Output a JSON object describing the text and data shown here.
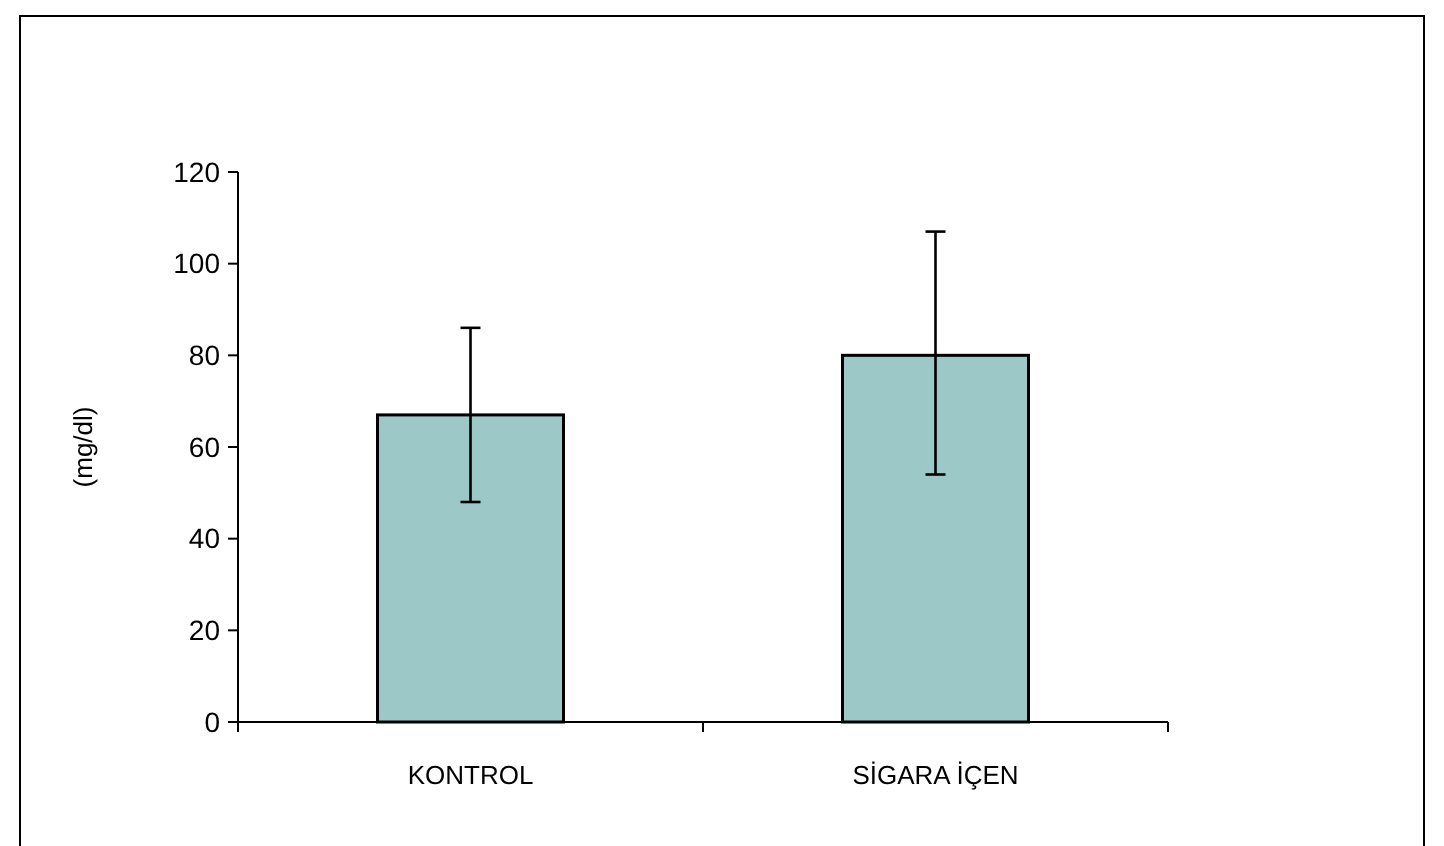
{
  "chart_data": {
    "type": "bar",
    "ylabel": "(mg/dl)",
    "categories": [
      "KONTROL",
      "SİGARA İÇEN"
    ],
    "values": [
      67,
      80
    ],
    "errors": [
      [
        48,
        86
      ],
      [
        54,
        107
      ]
    ],
    "color": "#9cc8c8",
    "ylim": [
      0,
      120
    ],
    "yticks": [
      0,
      20,
      40,
      60,
      80,
      100,
      120
    ],
    "grid": false
  }
}
